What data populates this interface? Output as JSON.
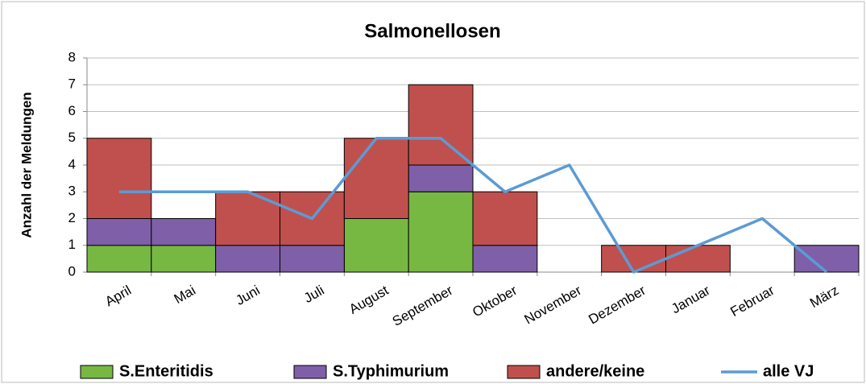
{
  "chart_data": {
    "type": "stacked_bar_line",
    "title": "Salmonellosen",
    "ylabel": "Anzahl der Meldungen",
    "categories": [
      "April",
      "Mai",
      "Juni",
      "Juli",
      "August",
      "September",
      "Oktober",
      "November",
      "Dezember",
      "Januar",
      "Februar",
      "März"
    ],
    "series": [
      {
        "name": "S.Enteritidis",
        "color": "#77b843",
        "values": [
          1,
          1,
          0,
          0,
          2,
          3,
          0,
          0,
          0,
          0,
          0,
          0
        ]
      },
      {
        "name": "S.Typhimurium",
        "color": "#7f5fa8",
        "values": [
          1,
          1,
          1,
          1,
          0,
          1,
          1,
          0,
          0,
          0,
          0,
          1
        ]
      },
      {
        "name": "andere/keine",
        "color": "#c0504d",
        "values": [
          3,
          0,
          2,
          2,
          3,
          3,
          2,
          0,
          1,
          1,
          0,
          0
        ]
      },
      {
        "name": "alle VJ",
        "color": "#5b9bd5",
        "type": "line",
        "values": [
          3,
          3,
          3,
          2,
          5,
          5,
          3,
          4,
          0,
          1,
          2,
          0
        ]
      }
    ],
    "ylim": [
      0,
      8
    ],
    "yticks": [
      0,
      1,
      2,
      3,
      4,
      5,
      6,
      7,
      8
    ],
    "grid": true,
    "legend": "bottom"
  }
}
